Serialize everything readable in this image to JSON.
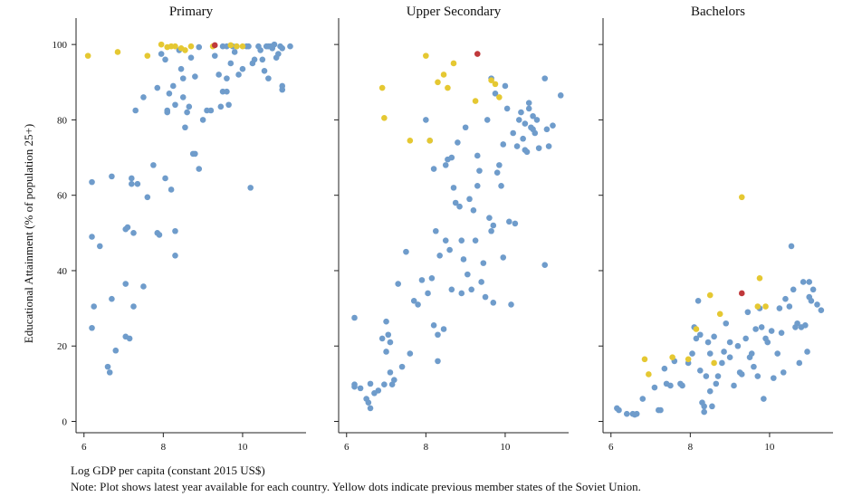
{
  "chart_data": {
    "type": "scatter",
    "ylabel": "Educational Attainment (% of population 25+)",
    "xlabel": "Log GDP per capita (constant 2015 US$)",
    "note": "Note: Plot shows latest year available for each country. Yellow dots indicate previous member states of the Soviet Union.",
    "xlim": [
      5.8,
      11.6
    ],
    "ylim": [
      -3,
      107
    ],
    "xticks": [
      6,
      8,
      10
    ],
    "yticks": [
      0,
      20,
      40,
      60,
      80,
      100
    ],
    "colors": {
      "other": "#6f9ccb",
      "soviet": "#e5c832",
      "highlight": "#c0393b"
    },
    "panels": [
      {
        "title": "Primary",
        "other": [
          [
            6.2,
            63.5
          ],
          [
            6.2,
            49
          ],
          [
            6.25,
            30.5
          ],
          [
            6.2,
            24.8
          ],
          [
            6.4,
            46.5
          ],
          [
            6.6,
            14.5
          ],
          [
            6.65,
            13
          ],
          [
            6.7,
            32.5
          ],
          [
            6.7,
            65
          ],
          [
            6.8,
            18.8
          ],
          [
            7.05,
            36.5
          ],
          [
            7.05,
            22.5
          ],
          [
            7.05,
            51
          ],
          [
            7.1,
            51.5
          ],
          [
            7.15,
            22
          ],
          [
            7.2,
            64.5
          ],
          [
            7.2,
            63
          ],
          [
            7.25,
            50
          ],
          [
            7.25,
            30.5
          ],
          [
            7.3,
            82.5
          ],
          [
            7.35,
            63
          ],
          [
            7.5,
            35.8
          ],
          [
            7.5,
            86
          ],
          [
            7.6,
            59.5
          ],
          [
            7.75,
            68
          ],
          [
            7.85,
            50
          ],
          [
            7.85,
            88.5
          ],
          [
            7.9,
            49.5
          ],
          [
            7.95,
            97.5
          ],
          [
            8.05,
            96
          ],
          [
            8.05,
            64.5
          ],
          [
            8.1,
            82.5
          ],
          [
            8.1,
            82
          ],
          [
            8.15,
            87
          ],
          [
            8.2,
            61.5
          ],
          [
            8.25,
            89
          ],
          [
            8.3,
            50.5
          ],
          [
            8.3,
            44
          ],
          [
            8.3,
            84
          ],
          [
            8.4,
            98.5
          ],
          [
            8.45,
            93.5
          ],
          [
            8.5,
            91
          ],
          [
            8.5,
            86
          ],
          [
            8.55,
            78
          ],
          [
            8.6,
            82
          ],
          [
            8.65,
            83.5
          ],
          [
            8.7,
            96.5
          ],
          [
            8.75,
            71
          ],
          [
            8.8,
            71
          ],
          [
            8.8,
            91.5
          ],
          [
            8.9,
            99.3
          ],
          [
            8.9,
            67
          ],
          [
            9.0,
            80
          ],
          [
            9.1,
            82.5
          ],
          [
            9.2,
            82.5
          ],
          [
            9.3,
            97
          ],
          [
            9.4,
            92
          ],
          [
            9.45,
            83.5
          ],
          [
            9.5,
            99.5
          ],
          [
            9.5,
            87.5
          ],
          [
            9.6,
            87.5
          ],
          [
            9.6,
            99.5
          ],
          [
            9.6,
            91
          ],
          [
            9.65,
            84
          ],
          [
            9.7,
            95
          ],
          [
            9.75,
            99.5
          ],
          [
            9.8,
            98
          ],
          [
            9.85,
            99.5
          ],
          [
            9.9,
            92
          ],
          [
            10.0,
            93.5
          ],
          [
            10.1,
            99.5
          ],
          [
            10.2,
            62
          ],
          [
            10.25,
            95
          ],
          [
            10.3,
            96
          ],
          [
            10.4,
            99.5
          ],
          [
            10.45,
            98.5
          ],
          [
            10.5,
            96
          ],
          [
            10.55,
            93
          ],
          [
            10.6,
            99.5
          ],
          [
            10.65,
            99.5
          ],
          [
            10.7,
            99.5
          ],
          [
            10.75,
            99
          ],
          [
            10.8,
            100
          ],
          [
            10.85,
            96.5
          ],
          [
            10.9,
            97.5
          ],
          [
            10.95,
            99.5
          ],
          [
            11.0,
            99
          ],
          [
            11.0,
            88
          ],
          [
            11.0,
            89
          ],
          [
            11.2,
            99.5
          ],
          [
            10.65,
            91
          ],
          [
            10.15,
            99.5
          ]
        ],
        "soviet": [
          [
            6.1,
            97
          ],
          [
            6.85,
            98
          ],
          [
            7.6,
            97
          ],
          [
            7.95,
            100
          ],
          [
            8.1,
            99.3
          ],
          [
            8.2,
            99.5
          ],
          [
            8.3,
            99.5
          ],
          [
            8.45,
            99
          ],
          [
            8.55,
            98.5
          ],
          [
            8.7,
            99.5
          ],
          [
            9.25,
            99.5
          ],
          [
            9.7,
            99.8
          ],
          [
            9.85,
            99.5
          ],
          [
            10.0,
            99.5
          ]
        ],
        "highlight": [
          [
            9.3,
            99.8
          ]
        ]
      },
      {
        "title": "Upper Secondary",
        "other": [
          [
            6.2,
            27.5
          ],
          [
            6.2,
            9.8
          ],
          [
            6.2,
            9.2
          ],
          [
            6.35,
            8.8
          ],
          [
            6.5,
            6
          ],
          [
            6.55,
            5
          ],
          [
            6.6,
            3.5
          ],
          [
            6.6,
            10
          ],
          [
            6.7,
            7.5
          ],
          [
            6.8,
            8.2
          ],
          [
            6.9,
            22
          ],
          [
            6.95,
            9.8
          ],
          [
            7.0,
            18.5
          ],
          [
            7.0,
            26.5
          ],
          [
            7.05,
            23
          ],
          [
            7.1,
            21
          ],
          [
            7.1,
            13
          ],
          [
            7.15,
            9.8
          ],
          [
            7.2,
            11
          ],
          [
            7.3,
            36.5
          ],
          [
            7.4,
            14.5
          ],
          [
            7.5,
            45
          ],
          [
            7.6,
            18
          ],
          [
            7.7,
            32
          ],
          [
            7.8,
            31
          ],
          [
            7.9,
            37.5
          ],
          [
            8.0,
            80
          ],
          [
            8.05,
            34
          ],
          [
            8.1,
            74.5
          ],
          [
            8.15,
            38
          ],
          [
            8.2,
            25.5
          ],
          [
            8.2,
            67
          ],
          [
            8.25,
            50.5
          ],
          [
            8.3,
            23
          ],
          [
            8.3,
            16
          ],
          [
            8.35,
            44
          ],
          [
            8.45,
            24.5
          ],
          [
            8.5,
            68
          ],
          [
            8.5,
            48
          ],
          [
            8.55,
            69.5
          ],
          [
            8.6,
            45.5
          ],
          [
            8.65,
            35
          ],
          [
            8.65,
            70
          ],
          [
            8.7,
            62
          ],
          [
            8.75,
            58
          ],
          [
            8.8,
            74
          ],
          [
            8.85,
            57
          ],
          [
            8.9,
            34
          ],
          [
            8.9,
            48
          ],
          [
            8.95,
            43
          ],
          [
            9.0,
            78
          ],
          [
            9.05,
            39
          ],
          [
            9.1,
            59
          ],
          [
            9.15,
            35
          ],
          [
            9.2,
            56
          ],
          [
            9.25,
            48
          ],
          [
            9.3,
            62.5
          ],
          [
            9.3,
            70.5
          ],
          [
            9.35,
            66.5
          ],
          [
            9.4,
            37
          ],
          [
            9.45,
            42
          ],
          [
            9.5,
            33
          ],
          [
            9.55,
            80
          ],
          [
            9.6,
            54
          ],
          [
            9.65,
            50.5
          ],
          [
            9.65,
            91
          ],
          [
            9.7,
            31.5
          ],
          [
            9.7,
            52
          ],
          [
            9.75,
            87
          ],
          [
            9.8,
            66
          ],
          [
            9.85,
            68
          ],
          [
            9.9,
            62.5
          ],
          [
            9.95,
            43.5
          ],
          [
            10.0,
            89
          ],
          [
            10.05,
            83
          ],
          [
            10.1,
            53
          ],
          [
            10.15,
            31
          ],
          [
            10.2,
            76.5
          ],
          [
            10.25,
            52.5
          ],
          [
            10.3,
            73
          ],
          [
            10.35,
            80
          ],
          [
            10.4,
            82
          ],
          [
            10.45,
            75
          ],
          [
            10.5,
            72
          ],
          [
            10.5,
            79
          ],
          [
            10.55,
            71.5
          ],
          [
            10.6,
            83
          ],
          [
            10.6,
            84.5
          ],
          [
            10.65,
            78
          ],
          [
            10.7,
            81
          ],
          [
            10.7,
            77.5
          ],
          [
            10.75,
            76.5
          ],
          [
            10.8,
            80
          ],
          [
            10.85,
            72.5
          ],
          [
            11.0,
            91
          ],
          [
            11.0,
            41.5
          ],
          [
            11.05,
            77.5
          ],
          [
            11.1,
            73
          ],
          [
            11.2,
            78.5
          ],
          [
            11.4,
            86.5
          ],
          [
            9.95,
            73.5
          ]
        ],
        "soviet": [
          [
            6.9,
            88.5
          ],
          [
            6.95,
            80.5
          ],
          [
            7.6,
            74.5
          ],
          [
            8.0,
            97
          ],
          [
            8.1,
            74.5
          ],
          [
            8.3,
            90
          ],
          [
            8.45,
            92
          ],
          [
            8.55,
            88.5
          ],
          [
            8.7,
            95
          ],
          [
            9.25,
            85
          ],
          [
            9.65,
            90.5
          ],
          [
            9.75,
            89.5
          ],
          [
            9.85,
            86
          ]
        ],
        "highlight": [
          [
            9.3,
            97.5
          ]
        ]
      },
      {
        "title": "Bachelors",
        "other": [
          [
            6.15,
            3.5
          ],
          [
            6.2,
            3
          ],
          [
            6.4,
            2
          ],
          [
            6.55,
            2
          ],
          [
            6.6,
            1.8
          ],
          [
            6.65,
            2
          ],
          [
            6.8,
            6
          ],
          [
            7.1,
            9
          ],
          [
            7.2,
            3
          ],
          [
            7.25,
            3
          ],
          [
            7.35,
            14
          ],
          [
            7.4,
            10
          ],
          [
            7.5,
            9.5
          ],
          [
            7.6,
            16
          ],
          [
            7.75,
            10
          ],
          [
            7.8,
            9.5
          ],
          [
            7.95,
            15.5
          ],
          [
            8.05,
            18
          ],
          [
            8.1,
            25
          ],
          [
            8.15,
            22
          ],
          [
            8.2,
            32
          ],
          [
            8.25,
            13.5
          ],
          [
            8.25,
            23
          ],
          [
            8.3,
            5
          ],
          [
            8.35,
            4
          ],
          [
            8.35,
            2.5
          ],
          [
            8.4,
            12
          ],
          [
            8.45,
            21
          ],
          [
            8.5,
            8
          ],
          [
            8.5,
            18
          ],
          [
            8.55,
            4
          ],
          [
            8.6,
            22.5
          ],
          [
            8.65,
            10
          ],
          [
            8.7,
            12
          ],
          [
            8.8,
            15.5
          ],
          [
            8.85,
            18.5
          ],
          [
            8.9,
            26
          ],
          [
            9.0,
            21
          ],
          [
            9.1,
            9.5
          ],
          [
            9.2,
            20
          ],
          [
            9.25,
            13
          ],
          [
            9.3,
            12.5
          ],
          [
            9.4,
            22
          ],
          [
            9.45,
            29
          ],
          [
            9.5,
            17
          ],
          [
            9.55,
            18
          ],
          [
            9.6,
            14.5
          ],
          [
            9.65,
            24.5
          ],
          [
            9.7,
            12
          ],
          [
            9.75,
            30
          ],
          [
            9.8,
            25
          ],
          [
            9.85,
            6
          ],
          [
            9.9,
            22
          ],
          [
            9.95,
            21
          ],
          [
            10.05,
            24
          ],
          [
            10.1,
            11.5
          ],
          [
            10.2,
            18
          ],
          [
            10.25,
            30
          ],
          [
            10.3,
            23.5
          ],
          [
            10.35,
            13
          ],
          [
            10.4,
            32.5
          ],
          [
            10.5,
            30.5
          ],
          [
            10.55,
            46.5
          ],
          [
            10.6,
            35
          ],
          [
            10.65,
            25
          ],
          [
            10.7,
            26
          ],
          [
            10.75,
            15.5
          ],
          [
            10.8,
            25
          ],
          [
            10.85,
            37
          ],
          [
            10.9,
            25.5
          ],
          [
            10.95,
            18.5
          ],
          [
            11.0,
            37
          ],
          [
            11.0,
            33
          ],
          [
            11.05,
            32
          ],
          [
            11.1,
            35
          ],
          [
            11.2,
            31
          ],
          [
            11.3,
            29.5
          ],
          [
            9.0,
            17
          ]
        ],
        "soviet": [
          [
            6.85,
            16.5
          ],
          [
            6.95,
            12.5
          ],
          [
            7.55,
            17
          ],
          [
            7.95,
            16.5
          ],
          [
            8.15,
            24.5
          ],
          [
            8.5,
            33.5
          ],
          [
            8.6,
            15.5
          ],
          [
            8.75,
            28.5
          ],
          [
            9.3,
            59.5
          ],
          [
            9.75,
            38
          ],
          [
            9.9,
            30.5
          ],
          [
            9.7,
            30.5
          ]
        ],
        "highlight": [
          [
            9.3,
            34
          ]
        ]
      }
    ]
  }
}
